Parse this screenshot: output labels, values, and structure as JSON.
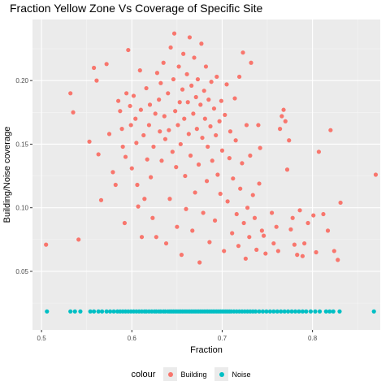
{
  "chart_data": {
    "type": "scatter",
    "title": "Fraction Yellow Zone Vs Coverage of Specific Site",
    "xlabel": "Fraction",
    "ylabel": "Building/Noise coverage",
    "xlim": [
      0.49,
      0.875
    ],
    "ylim": [
      0.004,
      0.248
    ],
    "x_ticks": [
      0.5,
      0.6,
      0.7,
      0.8
    ],
    "x_tick_labels": [
      "0.5",
      "0.6",
      "0.7",
      "0.8"
    ],
    "y_ticks": [
      0.05,
      0.1,
      0.15,
      0.2
    ],
    "y_tick_labels": [
      "0.05",
      "0.10",
      "0.15",
      "0.20"
    ],
    "grid": true,
    "legend_position": "bottom",
    "legend_title": "colour",
    "series": [
      {
        "name": "Building",
        "color": "#F8766D",
        "points": [
          [
            0.505,
            0.071
          ],
          [
            0.532,
            0.19
          ],
          [
            0.535,
            0.175
          ],
          [
            0.541,
            0.075
          ],
          [
            0.553,
            0.152
          ],
          [
            0.558,
            0.21
          ],
          [
            0.561,
            0.2
          ],
          [
            0.563,
            0.142
          ],
          [
            0.566,
            0.106
          ],
          [
            0.572,
            0.213
          ],
          [
            0.575,
            0.158
          ],
          [
            0.579,
            0.128
          ],
          [
            0.582,
            0.118
          ],
          [
            0.585,
            0.184
          ],
          [
            0.587,
            0.176
          ],
          [
            0.589,
            0.162
          ],
          [
            0.59,
            0.148
          ],
          [
            0.592,
            0.088
          ],
          [
            0.593,
            0.14
          ],
          [
            0.594,
            0.19
          ],
          [
            0.596,
            0.224
          ],
          [
            0.598,
            0.18
          ],
          [
            0.599,
            0.165
          ],
          [
            0.6,
            0.131
          ],
          [
            0.602,
            0.188
          ],
          [
            0.604,
            0.17
          ],
          [
            0.605,
            0.151
          ],
          [
            0.606,
            0.118
          ],
          [
            0.607,
            0.101
          ],
          [
            0.609,
            0.208
          ],
          [
            0.61,
            0.177
          ],
          [
            0.611,
            0.077
          ],
          [
            0.613,
            0.157
          ],
          [
            0.614,
            0.107
          ],
          [
            0.616,
            0.194
          ],
          [
            0.617,
            0.138
          ],
          [
            0.619,
            0.165
          ],
          [
            0.62,
            0.181
          ],
          [
            0.621,
            0.124
          ],
          [
            0.623,
            0.092
          ],
          [
            0.624,
            0.148
          ],
          [
            0.626,
            0.174
          ],
          [
            0.627,
            0.077
          ],
          [
            0.628,
            0.206
          ],
          [
            0.63,
            0.185
          ],
          [
            0.631,
            0.16
          ],
          [
            0.632,
            0.198
          ],
          [
            0.633,
            0.137
          ],
          [
            0.635,
            0.214
          ],
          [
            0.636,
            0.172
          ],
          [
            0.637,
            0.154
          ],
          [
            0.638,
            0.072
          ],
          [
            0.64,
            0.19
          ],
          [
            0.641,
            0.161
          ],
          [
            0.642,
            0.107
          ],
          [
            0.643,
            0.226
          ],
          [
            0.645,
            0.144
          ],
          [
            0.646,
            0.201
          ],
          [
            0.647,
            0.237
          ],
          [
            0.648,
            0.176
          ],
          [
            0.649,
            0.132
          ],
          [
            0.65,
            0.085
          ],
          [
            0.651,
            0.165
          ],
          [
            0.652,
            0.211
          ],
          [
            0.653,
            0.183
          ],
          [
            0.654,
            0.15
          ],
          [
            0.655,
            0.063
          ],
          [
            0.656,
            0.193
          ],
          [
            0.657,
            0.221
          ],
          [
            0.658,
            0.17
          ],
          [
            0.659,
            0.125
          ],
          [
            0.66,
            0.099
          ],
          [
            0.661,
            0.205
          ],
          [
            0.662,
            0.183
          ],
          [
            0.663,
            0.158
          ],
          [
            0.664,
            0.234
          ],
          [
            0.665,
            0.141
          ],
          [
            0.666,
            0.196
          ],
          [
            0.667,
            0.082
          ],
          [
            0.668,
            0.174
          ],
          [
            0.669,
            0.218
          ],
          [
            0.67,
            0.112
          ],
          [
            0.671,
            0.187
          ],
          [
            0.672,
            0.162
          ],
          [
            0.673,
            0.201
          ],
          [
            0.674,
            0.134
          ],
          [
            0.675,
            0.057
          ],
          [
            0.676,
            0.181
          ],
          [
            0.677,
            0.229
          ],
          [
            0.678,
            0.155
          ],
          [
            0.679,
            0.096
          ],
          [
            0.68,
            0.192
          ],
          [
            0.681,
            0.17
          ],
          [
            0.682,
            0.211
          ],
          [
            0.683,
            0.121
          ],
          [
            0.684,
            0.148
          ],
          [
            0.685,
            0.185
          ],
          [
            0.686,
            0.073
          ],
          [
            0.687,
            0.164
          ],
          [
            0.688,
            0.199
          ],
          [
            0.689,
            0.137
          ],
          [
            0.691,
            0.178
          ],
          [
            0.692,
            0.09
          ],
          [
            0.693,
            0.157
          ],
          [
            0.694,
            0.203
          ],
          [
            0.695,
            0.126
          ],
          [
            0.697,
            0.168
          ],
          [
            0.698,
            0.111
          ],
          [
            0.699,
            0.184
          ],
          [
            0.7,
            0.145
          ],
          [
            0.702,
            0.066
          ],
          [
            0.703,
            0.173
          ],
          [
            0.705,
            0.197
          ],
          [
            0.706,
            0.105
          ],
          [
            0.708,
            0.139
          ],
          [
            0.709,
            0.16
          ],
          [
            0.711,
            0.08
          ],
          [
            0.712,
            0.123
          ],
          [
            0.714,
            0.186
          ],
          [
            0.715,
            0.153
          ],
          [
            0.716,
            0.095
          ],
          [
            0.718,
            0.07
          ],
          [
            0.719,
            0.203
          ],
          [
            0.72,
            0.115
          ],
          [
            0.722,
            0.135
          ],
          [
            0.723,
            0.222
          ],
          [
            0.724,
            0.088
          ],
          [
            0.726,
            0.06
          ],
          [
            0.727,
            0.165
          ],
          [
            0.728,
            0.1
          ],
          [
            0.73,
            0.077
          ],
          [
            0.731,
            0.141
          ],
          [
            0.732,
            0.214
          ],
          [
            0.734,
            0.11
          ],
          [
            0.736,
            0.092
          ],
          [
            0.738,
            0.067
          ],
          [
            0.74,
            0.165
          ],
          [
            0.741,
            0.119
          ],
          [
            0.742,
            0.147
          ],
          [
            0.744,
            0.082
          ],
          [
            0.746,
            0.078
          ],
          [
            0.748,
            0.064
          ],
          [
            0.755,
            0.096
          ],
          [
            0.757,
            0.072
          ],
          [
            0.76,
            0.085
          ],
          [
            0.762,
            0.066
          ],
          [
            0.764,
            0.162
          ],
          [
            0.766,
            0.172
          ],
          [
            0.768,
            0.177
          ],
          [
            0.77,
            0.168
          ],
          [
            0.772,
            0.13
          ],
          [
            0.774,
            0.153
          ],
          [
            0.776,
            0.083
          ],
          [
            0.778,
            0.092
          ],
          [
            0.78,
            0.071
          ],
          [
            0.783,
            0.063
          ],
          [
            0.786,
            0.098
          ],
          [
            0.789,
            0.062
          ],
          [
            0.791,
            0.072
          ],
          [
            0.795,
            0.088
          ],
          [
            0.801,
            0.094
          ],
          [
            0.804,
            0.065
          ],
          [
            0.807,
            0.144
          ],
          [
            0.812,
            0.095
          ],
          [
            0.817,
            0.082
          ],
          [
            0.82,
            0.161
          ],
          [
            0.824,
            0.066
          ],
          [
            0.828,
            0.059
          ],
          [
            0.831,
            0.104
          ],
          [
            0.87,
            0.126
          ]
        ]
      },
      {
        "name": "Noise",
        "color": "#00BFC4",
        "y_value": 0.0185,
        "x": [
          0.506,
          0.532,
          0.537,
          0.543,
          0.554,
          0.558,
          0.563,
          0.567,
          0.572,
          0.576,
          0.58,
          0.584,
          0.587,
          0.59,
          0.593,
          0.596,
          0.599,
          0.602,
          0.605,
          0.608,
          0.611,
          0.614,
          0.616,
          0.619,
          0.622,
          0.625,
          0.627,
          0.63,
          0.632,
          0.635,
          0.637,
          0.64,
          0.642,
          0.644,
          0.646,
          0.648,
          0.65,
          0.652,
          0.654,
          0.656,
          0.658,
          0.66,
          0.662,
          0.664,
          0.666,
          0.668,
          0.67,
          0.672,
          0.674,
          0.676,
          0.678,
          0.68,
          0.682,
          0.684,
          0.686,
          0.688,
          0.69,
          0.692,
          0.694,
          0.696,
          0.698,
          0.7,
          0.702,
          0.704,
          0.706,
          0.708,
          0.71,
          0.713,
          0.716,
          0.719,
          0.722,
          0.725,
          0.728,
          0.731,
          0.734,
          0.737,
          0.741,
          0.745,
          0.749,
          0.753,
          0.757,
          0.761,
          0.765,
          0.769,
          0.773,
          0.777,
          0.781,
          0.785,
          0.789,
          0.793,
          0.798,
          0.803,
          0.808,
          0.815,
          0.819,
          0.823,
          0.83,
          0.868
        ]
      }
    ]
  }
}
